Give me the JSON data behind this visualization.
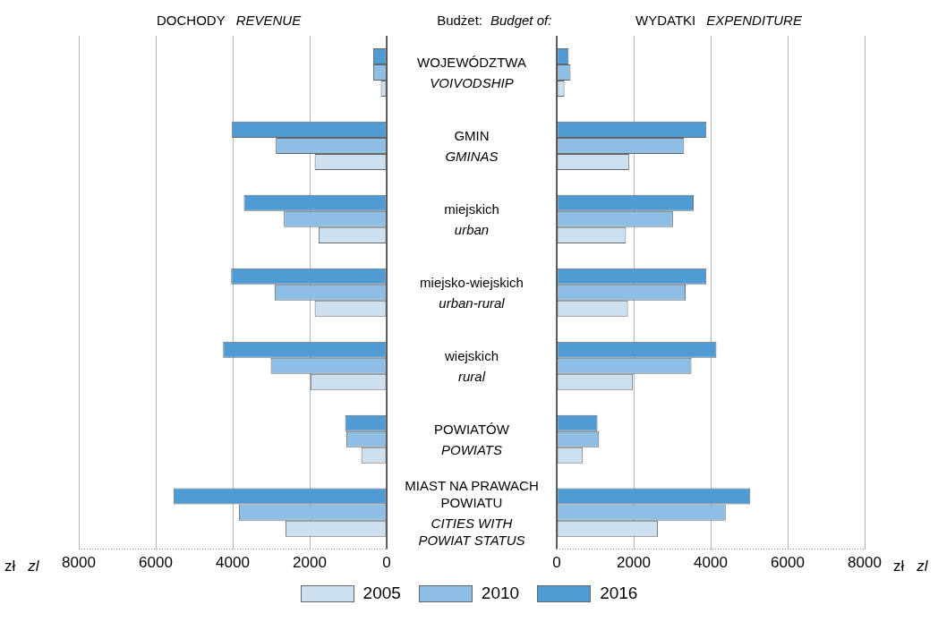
{
  "chart_data": [
    {
      "type": "bar",
      "orientation": "horizontal",
      "title": "DOCHODY",
      "subtitle": "REVENUE",
      "ylabel": "Budżet:",
      "xlabel": "zł zl",
      "categories": [
        "WOJEWÓDZTWA",
        "GMIN",
        "miejskich",
        "miejsko-wiejskich",
        "wiejskich",
        "POWIATÓW",
        "MIAST NA PRAWACH\nPOWIATU"
      ],
      "series": [
        {
          "name": "2005",
          "color": "#cce0f0",
          "values": [
            150,
            1870,
            1770,
            1870,
            1980,
            660,
            2630
          ]
        },
        {
          "name": "2010",
          "color": "#8dbfe4",
          "values": [
            350,
            2880,
            2670,
            2910,
            3010,
            1050,
            3840
          ]
        },
        {
          "name": "2016",
          "color": "#4f9bd4",
          "values": [
            350,
            4020,
            3710,
            4040,
            4250,
            1080,
            5540
          ]
        }
      ],
      "xlim": [
        8000,
        0
      ],
      "xticks": [
        8000,
        6000,
        4000,
        2000,
        0
      ],
      "grid": "x",
      "legend": "bottom"
    },
    {
      "type": "bar",
      "orientation": "horizontal",
      "title": "WYDATKI",
      "subtitle": "EXPENDITURE",
      "ylabel": "Budget of:",
      "xlabel": "zł zl",
      "categories": [
        "VOIVODSHIP",
        "GMINAS",
        "urban",
        "urban-rural",
        "rural",
        "POWIATS",
        "CITIES WITH\nPOWIAT STATUS"
      ],
      "series": [
        {
          "name": "2005",
          "color": "#cce0f0",
          "values": [
            200,
            1880,
            1800,
            1850,
            1980,
            680,
            2630
          ]
        },
        {
          "name": "2010",
          "color": "#8dbfe4",
          "values": [
            360,
            3310,
            3020,
            3350,
            3500,
            1100,
            4390
          ]
        },
        {
          "name": "2016",
          "color": "#4f9bd4",
          "values": [
            310,
            3890,
            3560,
            3890,
            4150,
            1060,
            5030
          ]
        }
      ],
      "xlim": [
        0,
        8000
      ],
      "xticks": [
        0,
        2000,
        4000,
        6000,
        8000
      ],
      "grid": "x"
    }
  ]
}
